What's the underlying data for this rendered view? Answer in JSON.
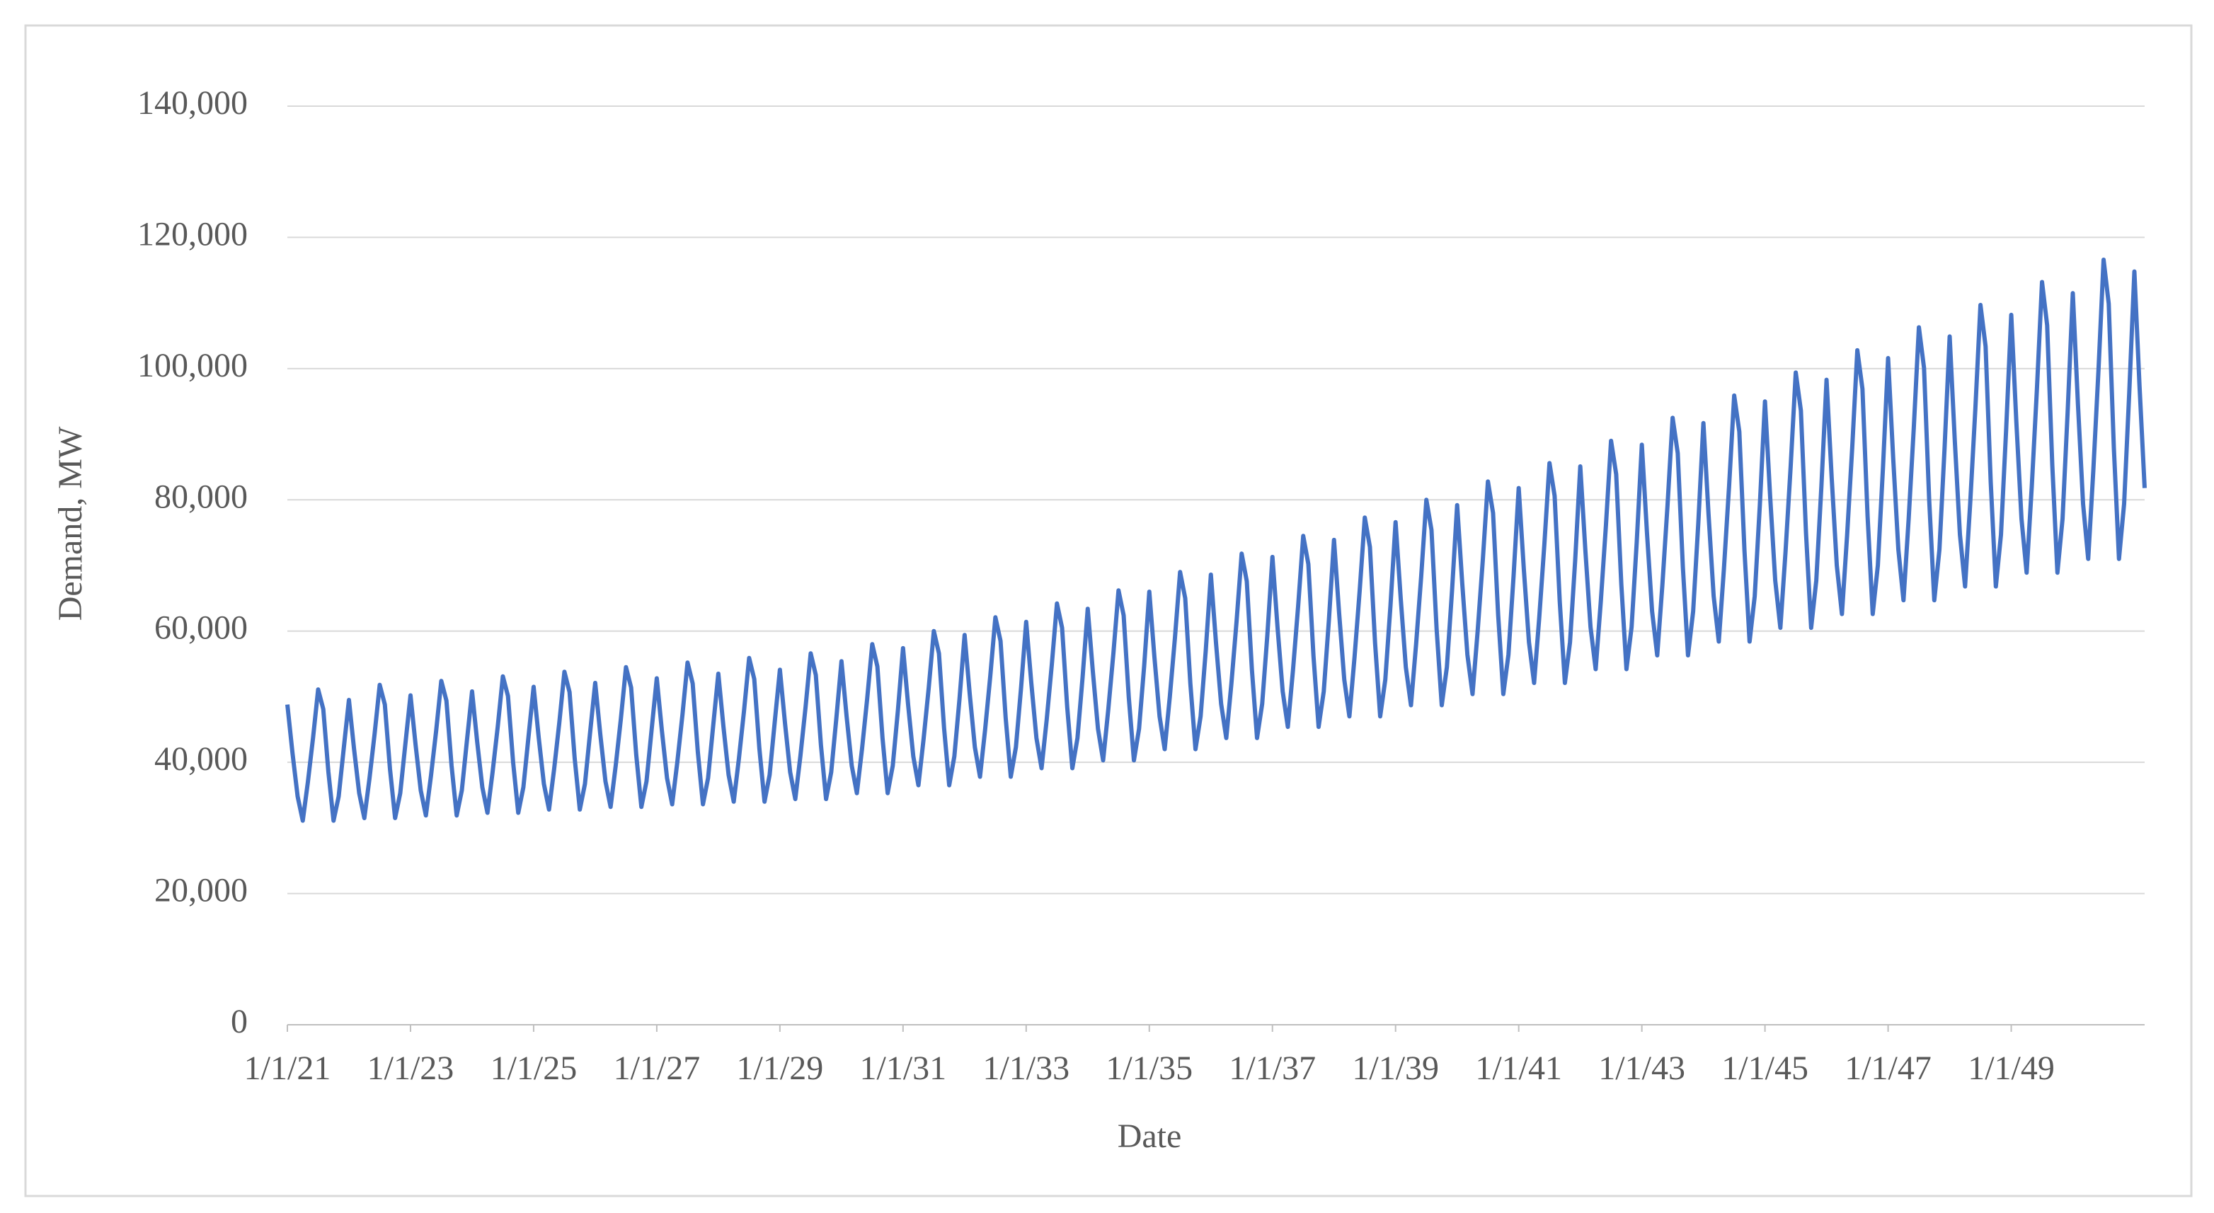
{
  "chart_data": {
    "type": "line",
    "x_label": "Date",
    "y_label": "Demand, MW",
    "color": "#4472c4",
    "grid": true,
    "ylim": [
      0,
      140000
    ],
    "yticks": [
      0,
      {
        "value": 20000,
        "label": "20,000"
      },
      {
        "value": 40000,
        "label": "40,000"
      },
      {
        "value": 60000,
        "label": "60,000"
      },
      {
        "value": 80000,
        "label": "80,000"
      },
      {
        "value": 100000,
        "label": "100,000"
      },
      {
        "value": 120000,
        "label": "120,000"
      },
      {
        "value": 140000,
        "label": "140,000"
      }
    ],
    "xlim": [
      "1/1/21",
      "3/1/51"
    ],
    "xticks": [
      "1/1/21",
      "1/1/23",
      "1/1/25",
      "1/1/27",
      "1/1/29",
      "1/1/31",
      "1/1/33",
      "1/1/35",
      "1/1/37",
      "1/1/39",
      "1/1/41",
      "1/1/43",
      "1/1/45",
      "1/1/47",
      "1/1/49"
    ],
    "x": [
      "1/1/21",
      "2/1/21",
      "3/1/21",
      "4/1/21",
      "5/1/21",
      "6/1/21",
      "7/1/21",
      "8/1/21",
      "9/1/21",
      "10/1/21",
      "11/1/21",
      "12/1/21",
      "1/1/22",
      "2/1/22",
      "3/1/22",
      "4/1/22",
      "5/1/22",
      "6/1/22",
      "7/1/22",
      "8/1/22",
      "9/1/22",
      "10/1/22",
      "11/1/22",
      "12/1/22",
      "1/1/23",
      "2/1/23",
      "3/1/23",
      "4/1/23",
      "5/1/23",
      "6/1/23",
      "7/1/23",
      "8/1/23",
      "9/1/23",
      "10/1/23",
      "11/1/23",
      "12/1/23",
      "1/1/24",
      "2/1/24",
      "3/1/24",
      "4/1/24",
      "5/1/24",
      "6/1/24",
      "7/1/24",
      "8/1/24",
      "9/1/24",
      "10/1/24",
      "11/1/24",
      "12/1/24",
      "1/1/25",
      "2/1/25",
      "3/1/25",
      "4/1/25",
      "5/1/25",
      "6/1/25",
      "7/1/25",
      "8/1/25",
      "9/1/25",
      "10/1/25",
      "11/1/25",
      "12/1/25",
      "1/1/26",
      "2/1/26",
      "3/1/26",
      "4/1/26",
      "5/1/26",
      "6/1/26",
      "7/1/26",
      "8/1/26",
      "9/1/26",
      "10/1/26",
      "11/1/26",
      "12/1/26",
      "1/1/27",
      "2/1/27",
      "3/1/27",
      "4/1/27",
      "5/1/27",
      "6/1/27",
      "7/1/27",
      "8/1/27",
      "9/1/27",
      "10/1/27",
      "11/1/27",
      "12/1/27",
      "1/1/28",
      "2/1/28",
      "3/1/28",
      "4/1/28",
      "5/1/28",
      "6/1/28",
      "7/1/28",
      "8/1/28",
      "9/1/28",
      "10/1/28",
      "11/1/28",
      "12/1/28",
      "1/1/29",
      "2/1/29",
      "3/1/29",
      "4/1/29",
      "5/1/29",
      "6/1/29",
      "7/1/29",
      "8/1/29",
      "9/1/29",
      "10/1/29",
      "11/1/29",
      "12/1/29",
      "1/1/30",
      "2/1/30",
      "3/1/30",
      "4/1/30",
      "5/1/30",
      "6/1/30",
      "7/1/30",
      "8/1/30",
      "9/1/30",
      "10/1/30",
      "11/1/30",
      "12/1/30",
      "1/1/31",
      "2/1/31",
      "3/1/31",
      "4/1/31",
      "5/1/31",
      "6/1/31",
      "7/1/31",
      "8/1/31",
      "9/1/31",
      "10/1/31",
      "11/1/31",
      "12/1/31",
      "1/1/32",
      "2/1/32",
      "3/1/32",
      "4/1/32",
      "5/1/32",
      "6/1/32",
      "7/1/32",
      "8/1/32",
      "9/1/32",
      "10/1/32",
      "11/1/32",
      "12/1/32",
      "1/1/33",
      "2/1/33",
      "3/1/33",
      "4/1/33",
      "5/1/33",
      "6/1/33",
      "7/1/33",
      "8/1/33",
      "9/1/33",
      "10/1/33",
      "11/1/33",
      "12/1/33",
      "1/1/34",
      "2/1/34",
      "3/1/34",
      "4/1/34",
      "5/1/34",
      "6/1/34",
      "7/1/34",
      "8/1/34",
      "9/1/34",
      "10/1/34",
      "11/1/34",
      "12/1/34",
      "1/1/35",
      "2/1/35",
      "3/1/35",
      "4/1/35",
      "5/1/35",
      "6/1/35",
      "7/1/35",
      "8/1/35",
      "9/1/35",
      "10/1/35",
      "11/1/35",
      "12/1/35",
      "1/1/36",
      "2/1/36",
      "3/1/36",
      "4/1/36",
      "5/1/36",
      "6/1/36",
      "7/1/36",
      "8/1/36",
      "9/1/36",
      "10/1/36",
      "11/1/36",
      "12/1/36",
      "1/1/37",
      "2/1/37",
      "3/1/37",
      "4/1/37",
      "5/1/37",
      "6/1/37",
      "7/1/37",
      "8/1/37",
      "9/1/37",
      "10/1/37",
      "11/1/37",
      "12/1/37",
      "1/1/38",
      "2/1/38",
      "3/1/38",
      "4/1/38",
      "5/1/38",
      "6/1/38",
      "7/1/38",
      "8/1/38",
      "9/1/38",
      "10/1/38",
      "11/1/38",
      "12/1/38",
      "1/1/39",
      "2/1/39",
      "3/1/39",
      "4/1/39",
      "5/1/39",
      "6/1/39",
      "7/1/39",
      "8/1/39",
      "9/1/39",
      "10/1/39",
      "11/1/39",
      "12/1/39",
      "1/1/40",
      "2/1/40",
      "3/1/40",
      "4/1/40",
      "5/1/40",
      "6/1/40",
      "7/1/40",
      "8/1/40",
      "9/1/40",
      "10/1/40",
      "11/1/40",
      "12/1/40",
      "1/1/41",
      "2/1/41",
      "3/1/41",
      "4/1/41",
      "5/1/41",
      "6/1/41",
      "7/1/41",
      "8/1/41",
      "9/1/41",
      "10/1/41",
      "11/1/41",
      "12/1/41",
      "1/1/42",
      "2/1/42",
      "3/1/42",
      "4/1/42",
      "5/1/42",
      "6/1/42",
      "7/1/42",
      "8/1/42",
      "9/1/42",
      "10/1/42",
      "11/1/42",
      "12/1/42",
      "1/1/43",
      "2/1/43",
      "3/1/43",
      "4/1/43",
      "5/1/43",
      "6/1/43",
      "7/1/43",
      "8/1/43",
      "9/1/43",
      "10/1/43",
      "11/1/43",
      "12/1/43",
      "1/1/44",
      "2/1/44",
      "3/1/44",
      "4/1/44",
      "5/1/44",
      "6/1/44",
      "7/1/44",
      "8/1/44",
      "9/1/44",
      "10/1/44",
      "11/1/44",
      "12/1/44",
      "1/1/45",
      "2/1/45",
      "3/1/45",
      "4/1/45",
      "5/1/45",
      "6/1/45",
      "7/1/45",
      "8/1/45",
      "9/1/45",
      "10/1/45",
      "11/1/45",
      "12/1/45",
      "1/1/46",
      "2/1/46",
      "3/1/46",
      "4/1/46",
      "5/1/46",
      "6/1/46",
      "7/1/46",
      "8/1/46",
      "9/1/46",
      "10/1/46",
      "11/1/46",
      "12/1/46",
      "1/1/47",
      "2/1/47",
      "3/1/47",
      "4/1/47",
      "5/1/47",
      "6/1/47",
      "7/1/47",
      "8/1/47",
      "9/1/47",
      "10/1/47",
      "11/1/47",
      "12/1/47",
      "1/1/48",
      "2/1/48",
      "3/1/48",
      "4/1/48",
      "5/1/48",
      "6/1/48",
      "7/1/48",
      "8/1/48",
      "9/1/48",
      "10/1/48",
      "11/1/48",
      "12/1/48",
      "1/1/49",
      "2/1/49",
      "3/1/49",
      "4/1/49",
      "5/1/49",
      "6/1/49",
      "7/1/49",
      "8/1/49",
      "9/1/49",
      "10/1/49",
      "11/1/49",
      "12/1/49",
      "1/1/50",
      "2/1/50",
      "3/1/50",
      "4/1/50",
      "5/1/50",
      "6/1/50",
      "7/1/50",
      "8/1/50",
      "9/1/50",
      "10/1/50",
      "11/1/50",
      "12/1/50",
      "1/1/51",
      "2/1/51",
      "3/1/51"
    ],
    "values": [
      48800,
      41400,
      34800,
      31100,
      37000,
      43700,
      51100,
      48100,
      38500,
      31100,
      34800,
      42200,
      49500,
      42000,
      35300,
      31500,
      37500,
      44300,
      51800,
      48800,
      39000,
      31500,
      35300,
      42800,
      50200,
      42600,
      35700,
      31900,
      38000,
      44800,
      52400,
      49400,
      39500,
      31900,
      35700,
      43300,
      50800,
      43100,
      36200,
      32300,
      38500,
      45400,
      53100,
      50100,
      40000,
      32300,
      36200,
      43900,
      51500,
      43700,
      36700,
      32800,
      39000,
      46000,
      53800,
      50700,
      40600,
      32800,
      36700,
      44500,
      52100,
      44200,
      37100,
      33200,
      39500,
      46600,
      54500,
      51400,
      41100,
      33200,
      37100,
      45000,
      52800,
      44800,
      37600,
      33600,
      40000,
      47200,
      55200,
      52000,
      41600,
      33600,
      37600,
      45600,
      53500,
      45400,
      38100,
      34000,
      40500,
      47800,
      55900,
      52700,
      42100,
      34000,
      38100,
      46200,
      54100,
      45900,
      38500,
      34400,
      41000,
      48400,
      56600,
      53300,
      42600,
      34400,
      38500,
      46700,
      55400,
      47000,
      39500,
      35300,
      42000,
      49600,
      58000,
      54600,
      43700,
      35300,
      39500,
      47900,
      57400,
      48700,
      40900,
      36500,
      43500,
      51300,
      60000,
      56600,
      45200,
      36500,
      40900,
      49600,
      59400,
      50400,
      42300,
      37800,
      45000,
      53100,
      62100,
      58500,
      46800,
      37800,
      42300,
      51300,
      61400,
      52100,
      43700,
      39100,
      46500,
      54900,
      64200,
      60500,
      48400,
      39100,
      43700,
      53000,
      63400,
      53800,
      45100,
      40300,
      48000,
      56600,
      66200,
      62400,
      49900,
      40300,
      45100,
      54700,
      66000,
      56000,
      47000,
      42000,
      50000,
      59000,
      69000,
      65000,
      52000,
      42000,
      47000,
      57000,
      68600,
      58200,
      48900,
      43700,
      52000,
      61400,
      71800,
      67600,
      54100,
      43700,
      48900,
      59300,
      71300,
      60500,
      50800,
      45400,
      54000,
      63700,
      74500,
      70200,
      56200,
      45400,
      50800,
      61600,
      73900,
      62700,
      52600,
      47000,
      56000,
      66100,
      77300,
      72800,
      58200,
      47000,
      52600,
      63800,
      76600,
      65000,
      54500,
      48700,
      58000,
      68400,
      80000,
      75400,
      60300,
      48700,
      54500,
      66100,
      79200,
      67200,
      56400,
      50400,
      60000,
      70800,
      82800,
      78000,
      62400,
      50400,
      56400,
      68400,
      81800,
      69400,
      58300,
      52100,
      62000,
      73200,
      85600,
      80600,
      64500,
      52100,
      58300,
      70700,
      85100,
      72200,
      60600,
      54200,
      64500,
      76100,
      89000,
      83900,
      67100,
      54200,
      60600,
      73500,
      88400,
      75000,
      63000,
      56300,
      67000,
      79100,
      92500,
      87100,
      69700,
      56300,
      63000,
      76400,
      91700,
      77800,
      65300,
      58400,
      69500,
      82000,
      95900,
      90400,
      72300,
      58400,
      65300,
      79200,
      95000,
      80600,
      67700,
      60500,
      72000,
      85000,
      99400,
      93600,
      74900,
      60500,
      67700,
      82100,
      98300,
      83400,
      70000,
      62600,
      74500,
      87900,
      102800,
      96900,
      77500,
      62600,
      70000,
      84900,
      101600,
      86200,
      72400,
      64700,
      77000,
      90900,
      106300,
      100100,
      80100,
      64700,
      72400,
      87800,
      104900,
      89000,
      74700,
      66800,
      79500,
      93800,
      109700,
      103400,
      82700,
      66800,
      74700,
      90600,
      108200,
      91800,
      77100,
      68900,
      82000,
      96800,
      113200,
      106600,
      85300,
      68900,
      77100,
      93500,
      111500,
      94600,
      79400,
      71000,
      84500,
      99700,
      116600,
      109900,
      87900,
      71000,
      79400,
      96300,
      114800,
      97400,
      81800
    ]
  }
}
